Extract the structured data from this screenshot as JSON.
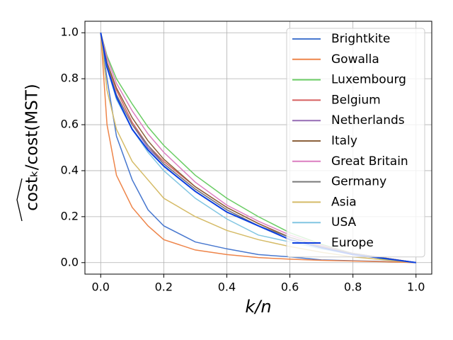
{
  "chart_data": {
    "type": "line",
    "xlabel": "k/n",
    "ylabel": "costₖ/cost(MST)",
    "x": [
      0,
      0.02,
      0.05,
      0.1,
      0.15,
      0.2,
      0.3,
      0.4,
      0.5,
      0.6,
      0.7,
      0.8,
      0.9,
      1.0
    ],
    "series": [
      {
        "name": "Brightkite",
        "color": "#4878cf",
        "values": [
          1,
          0.8,
          0.55,
          0.36,
          0.23,
          0.16,
          0.09,
          0.06,
          0.035,
          0.025,
          0.012,
          0.008,
          0.005,
          0
        ]
      },
      {
        "name": "Gowalla",
        "color": "#ee854a",
        "values": [
          1,
          0.6,
          0.38,
          0.24,
          0.16,
          0.1,
          0.055,
          0.035,
          0.022,
          0.015,
          0.01,
          0.007,
          0.004,
          0
        ]
      },
      {
        "name": "Luxembourg",
        "color": "#6acc64",
        "values": [
          1,
          0.9,
          0.8,
          0.69,
          0.59,
          0.51,
          0.38,
          0.28,
          0.2,
          0.13,
          0.08,
          0.04,
          0.015,
          0
        ]
      },
      {
        "name": "Belgium",
        "color": "#d65f5f",
        "values": [
          1,
          0.87,
          0.75,
          0.61,
          0.51,
          0.44,
          0.33,
          0.24,
          0.17,
          0.11,
          0.07,
          0.04,
          0.02,
          0
        ]
      },
      {
        "name": "Netherlands",
        "color": "#956cb4",
        "values": [
          1,
          0.86,
          0.73,
          0.6,
          0.5,
          0.43,
          0.32,
          0.23,
          0.16,
          0.11,
          0.07,
          0.04,
          0.02,
          0
        ]
      },
      {
        "name": "Italy",
        "color": "#8c613c",
        "values": [
          1,
          0.87,
          0.76,
          0.63,
          0.53,
          0.45,
          0.33,
          0.24,
          0.17,
          0.11,
          0.07,
          0.04,
          0.02,
          0
        ]
      },
      {
        "name": "Great Britain",
        "color": "#dc7ec0",
        "values": [
          1,
          0.89,
          0.78,
          0.66,
          0.56,
          0.48,
          0.35,
          0.25,
          0.18,
          0.12,
          0.075,
          0.04,
          0.02,
          0
        ]
      },
      {
        "name": "Germany",
        "color": "#797979",
        "values": [
          1,
          0.86,
          0.73,
          0.6,
          0.51,
          0.43,
          0.32,
          0.23,
          0.16,
          0.11,
          0.07,
          0.04,
          0.02,
          0
        ]
      },
      {
        "name": "Asia",
        "color": "#d5bb67",
        "values": [
          1,
          0.75,
          0.58,
          0.44,
          0.36,
          0.28,
          0.2,
          0.14,
          0.1,
          0.07,
          0.045,
          0.025,
          0.012,
          0
        ]
      },
      {
        "name": "USA",
        "color": "#82c6e2",
        "values": [
          1,
          0.85,
          0.71,
          0.58,
          0.48,
          0.4,
          0.28,
          0.19,
          0.12,
          0.09,
          0.06,
          0.035,
          0.018,
          0
        ]
      },
      {
        "name": "Europe",
        "color": "#0b3fe0",
        "values": [
          1,
          0.85,
          0.72,
          0.58,
          0.49,
          0.42,
          0.31,
          0.22,
          0.16,
          0.1,
          0.065,
          0.035,
          0.018,
          0
        ]
      }
    ],
    "xlim": [
      -0.05,
      1.05
    ],
    "ylim": [
      -0.05,
      1.05
    ],
    "xticks": [
      {
        "value": 0,
        "label": "0.0"
      },
      0.2,
      0.4,
      0.6,
      0.8,
      {
        "value": 1,
        "label": "1.0"
      }
    ],
    "yticks": [
      {
        "value": 0,
        "label": "0.0"
      },
      0.2,
      0.4,
      0.6,
      0.8,
      {
        "value": 1,
        "label": "1.0"
      }
    ],
    "grid": true,
    "legend": "upper right"
  }
}
